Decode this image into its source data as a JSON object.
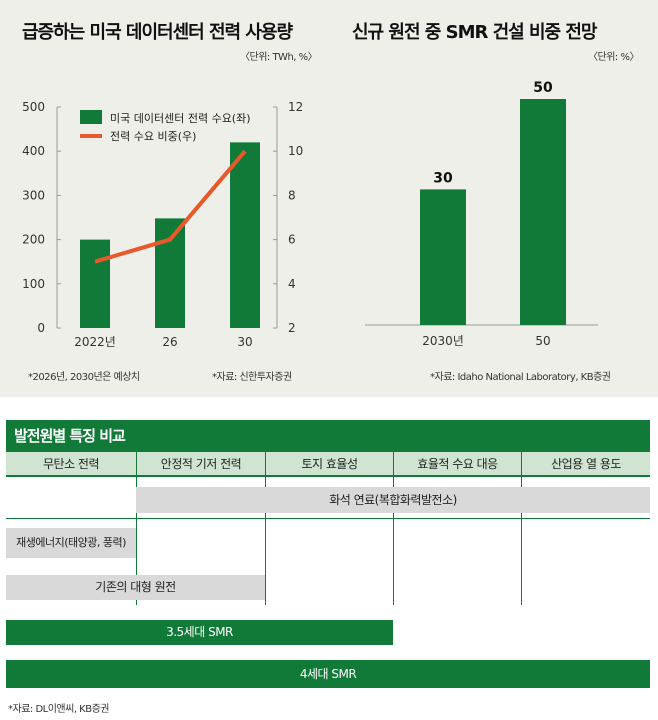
{
  "chart_data": [
    {
      "type": "bar+line",
      "title": "급증하는 미국 데이터센터 전력 사용량",
      "unit": "〈단위: TWh, %〉",
      "categories": [
        "2022년",
        "26",
        "30"
      ],
      "series": [
        {
          "name": "미국 데이터센터 전력 수요(좌)",
          "type": "bar",
          "axis": "left",
          "values": [
            200,
            248,
            420
          ],
          "color": "#117a38"
        },
        {
          "name": "전력 수요 비중(우)",
          "type": "line",
          "axis": "right",
          "values": [
            5,
            6,
            10
          ],
          "color": "#e8582a"
        }
      ],
      "ylim_left": [
        0,
        500
      ],
      "yticks_left": [
        "0",
        "100",
        "200",
        "300",
        "400",
        "500"
      ],
      "ylim_right": [
        2,
        12
      ],
      "yticks_right": [
        "2",
        "4",
        "6",
        "8",
        "10",
        "12"
      ],
      "legend": "top-left",
      "footnote_left": "*2026년, 2030년은 예상치",
      "footnote_right": "*자료: 신한투자증권"
    },
    {
      "type": "bar",
      "title": "신규 원전 중 SMR 건설 비중 전망",
      "unit": "〈단위: %〉",
      "categories": [
        "2030년",
        "50"
      ],
      "values": [
        30,
        50
      ],
      "data_labels": [
        "30",
        "50"
      ],
      "color": "#117a38",
      "ylim": [
        0,
        55
      ],
      "footnote": "*자료: Idaho National Laboratory, KB증권"
    }
  ],
  "table": {
    "title": "발전원별 특징 비교",
    "headers": [
      "무탄소 전력",
      "안정적 기저 전력",
      "토지 효율성",
      "효율적 수요 대응",
      "산업용 열 용도"
    ],
    "rows": [
      {
        "label": "화석 연료(복합화력발전소)",
        "from": 1,
        "to": 5,
        "style": "gray"
      },
      {
        "label": "재생에너지(태양광, 풍력)",
        "from": 0,
        "to": 1,
        "style": "gray"
      },
      {
        "label": "기존의 대형 원전",
        "from": 0,
        "to": 2,
        "style": "gray"
      },
      {
        "label": "3.5세대 SMR",
        "from": 0,
        "to": 3,
        "style": "green"
      },
      {
        "label": "4세대 SMR",
        "from": 0,
        "to": 5,
        "style": "green"
      }
    ],
    "source": "*자료: DL이앤씨, KB증권"
  }
}
